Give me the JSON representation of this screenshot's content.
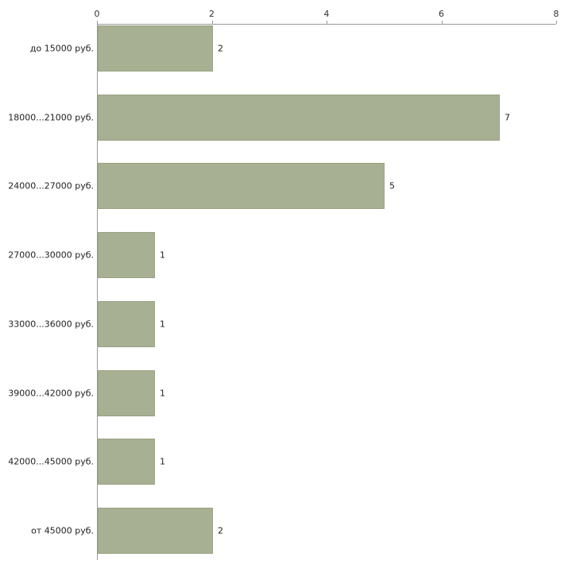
{
  "chart_data": {
    "type": "bar",
    "orientation": "horizontal",
    "title": "",
    "xlabel": "",
    "ylabel": "",
    "categories": [
      "до 15000 руб.",
      "18000...21000 руб.",
      "24000...27000 руб.",
      "27000...30000 руб.",
      "33000...36000 руб.",
      "39000...42000 руб.",
      "42000...45000 руб.",
      "от 45000 руб."
    ],
    "values": [
      2,
      7,
      5,
      1,
      1,
      1,
      1,
      2
    ],
    "value_labels": [
      "2",
      "7",
      "5",
      "1",
      "1",
      "1",
      "1",
      "2"
    ],
    "xlim": [
      0,
      8
    ],
    "xticks": [
      0,
      2,
      4,
      6,
      8
    ],
    "xtick_labels": [
      "0",
      "2",
      "4",
      "6",
      "8"
    ],
    "grid": false,
    "legend": false,
    "axis_position": "top-left",
    "bar_color": "#a8b093",
    "bar_border_color": "#98a281",
    "axis_color": "#9a9a9a",
    "background_color": "#ffffff",
    "text_color": "#222222"
  }
}
